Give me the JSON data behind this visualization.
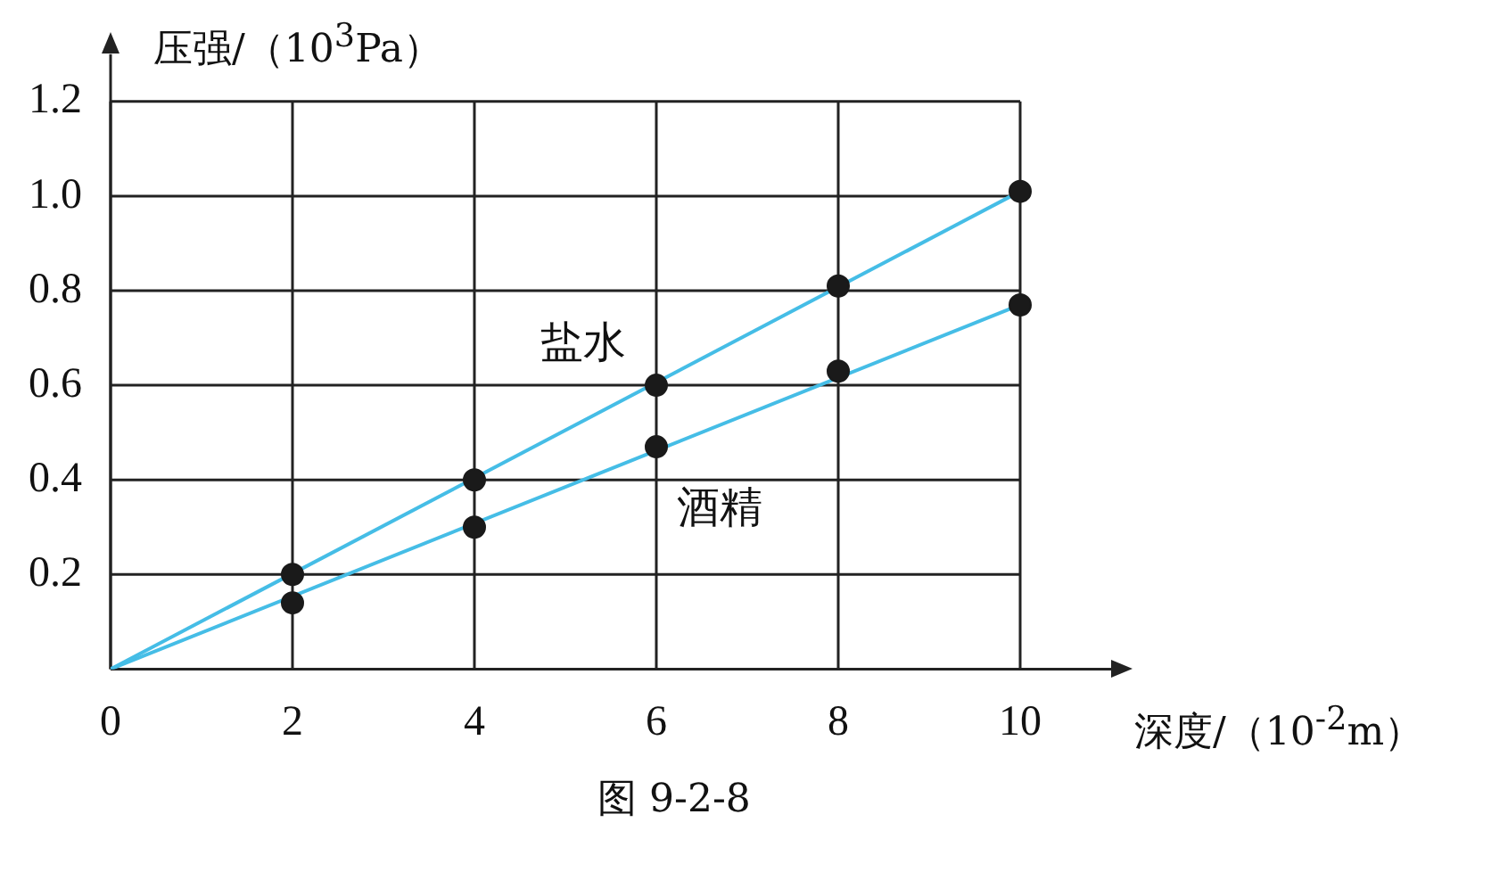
{
  "chart_data": {
    "type": "scatter",
    "xlabel": "深度/（10$^{-2}$m）",
    "ylabel": "压强/（10$^{3}$Pa）",
    "xlim": [
      0,
      11
    ],
    "xticks": [
      0,
      2,
      4,
      6,
      8,
      10
    ],
    "ylim": [
      0,
      1.3
    ],
    "yticks": [
      {
        "value": 0,
        "label": null
      },
      0.2,
      0.4,
      0.6,
      0.8,
      {
        "value": 1,
        "label": "1.0"
      },
      1.2
    ],
    "grid": true,
    "marker": "circle",
    "series": [
      {
        "color": "#1a1a1a",
        "x": [
          2,
          4,
          6,
          8,
          10
        ],
        "values": [
          0.2,
          0.4,
          0.6,
          0.81,
          1.01
        ]
      },
      {
        "color": "#1a1a1a",
        "x": [
          2,
          4,
          6,
          8,
          10
        ],
        "values": [
          0.14,
          0.3,
          0.47,
          0.63,
          0.77
        ]
      },
      {
        "type": "line",
        "name": "盐水",
        "marker": "none",
        "color": "#45bde6",
        "x": [
          0,
          10
        ],
        "values": [
          0,
          1.01
        ]
      },
      {
        "type": "line",
        "name": "酒精",
        "marker": "none",
        "color": "#45bde6",
        "x": [
          0,
          10
        ],
        "values": [
          0,
          0.77
        ]
      }
    ],
    "annotations": [
      "图 9-2-8"
    ]
  }
}
